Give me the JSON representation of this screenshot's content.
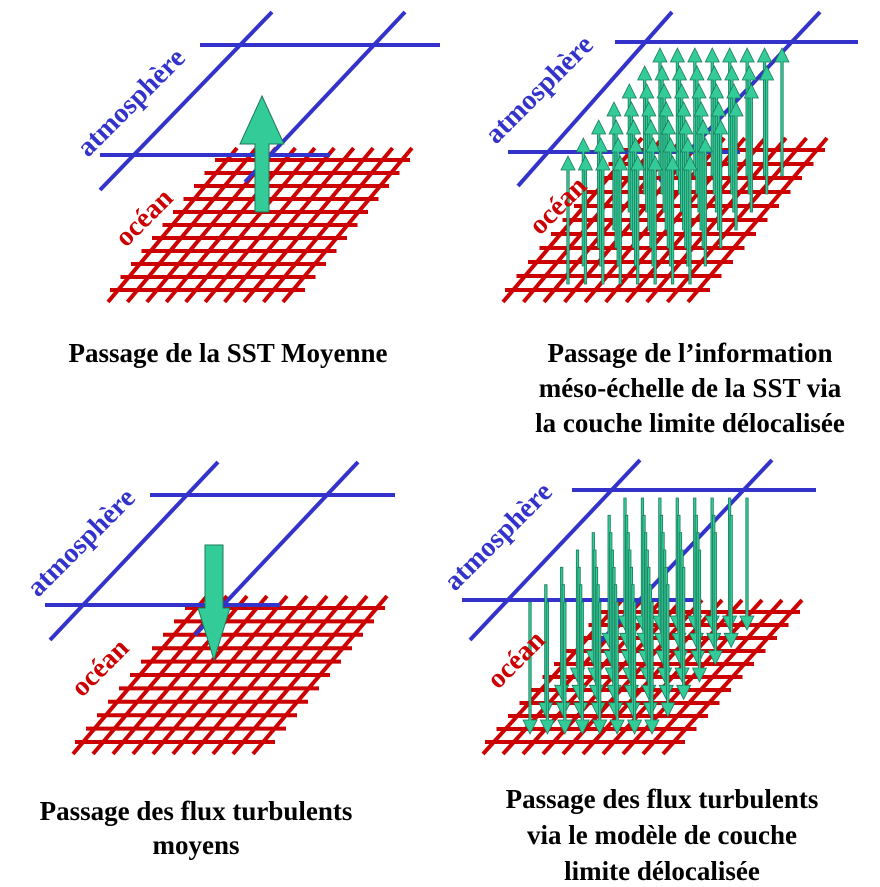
{
  "colors": {
    "atmosphere": "#3333cc",
    "ocean": "#cc0000",
    "arrow_fill": "#33cc99",
    "arrow_stroke": "#1a7a5a",
    "caption": "#000000"
  },
  "panels": [
    {
      "id": "mean-sst",
      "atmosphere_label": "atmosphère",
      "ocean_label": "océan",
      "arrow_direction": "up",
      "arrow_style": "single",
      "caption": [
        "Passage de la SST Moyenne"
      ]
    },
    {
      "id": "mesoscale-sst",
      "atmosphere_label": "atmosphère",
      "ocean_label": "océan",
      "arrow_direction": "up",
      "arrow_style": "field",
      "caption": [
        "Passage de l’information",
        "méso-échelle de la SST via",
        "la couche limite délocalisée"
      ]
    },
    {
      "id": "mean-turbulent-flux",
      "atmosphere_label": "atmosphère",
      "ocean_label": "océan",
      "arrow_direction": "down",
      "arrow_style": "single",
      "caption": [
        "Passage des flux turbulents",
        "moyens"
      ]
    },
    {
      "id": "delocalized-turbulent-flux",
      "atmosphere_label": "atmosphère",
      "ocean_label": "océan",
      "arrow_direction": "down",
      "arrow_style": "field",
      "caption": [
        "Passage des flux turbulents",
        "via le modèle de couche",
        "limite délocalisée"
      ]
    }
  ]
}
